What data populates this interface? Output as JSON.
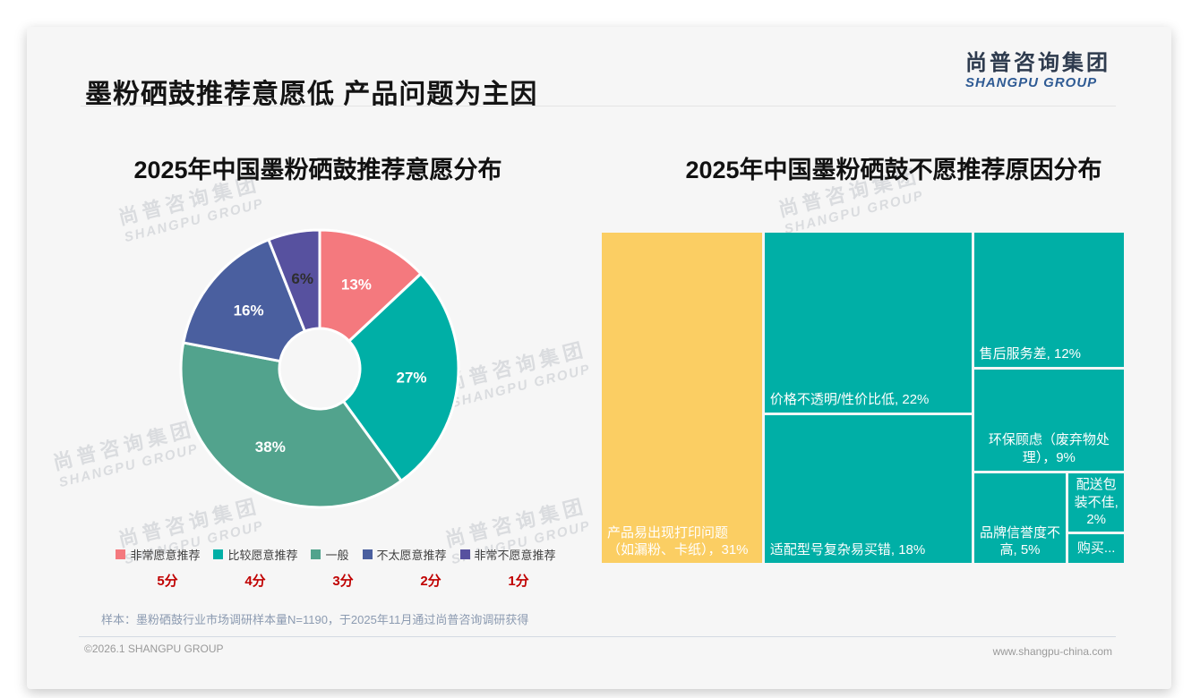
{
  "page": {
    "title": "墨粉硒鼓推荐意愿低 产品问题为主因",
    "logo": {
      "cn": "尚普咨询集团",
      "en": "SHANGPU GROUP"
    },
    "watermark": {
      "line1": "尚普咨询集团",
      "line2": "SHANGPU GROUP"
    },
    "footnote": "样本：墨粉硒鼓行业市场调研样本量N=1190，于2025年11月通过尚普咨询调研获得",
    "footer": {
      "left": "©2026.1 SHANGPU GROUP",
      "right": "www.shangpu-china.com"
    }
  },
  "chart_data": [
    {
      "type": "pie",
      "subtype": "donut",
      "title": "2025年中国墨粉硒鼓推荐意愿分布",
      "unit": "%",
      "legend_position": "bottom",
      "series": [
        {
          "label": "非常愿意推荐",
          "score": "5分",
          "value": 13,
          "pct_label": "13%",
          "color": "#F4797E",
          "label_color": "#FFFFFF"
        },
        {
          "label": "比较愿意推荐",
          "score": "4分",
          "value": 27,
          "pct_label": "27%",
          "color": "#00AFA6",
          "label_color": "#FFFFFF"
        },
        {
          "label": "一般",
          "score": "3分",
          "value": 38,
          "pct_label": "38%",
          "color": "#52A38D",
          "label_color": "#FFFFFF"
        },
        {
          "label": "不太愿意推荐",
          "score": "2分",
          "value": 16,
          "pct_label": "16%",
          "color": "#4A5F9F",
          "label_color": "#FFFFFF"
        },
        {
          "label": "非常不愿意推荐",
          "score": "1分",
          "value": 6,
          "pct_label": "6%",
          "color": "#57519F",
          "label_color": "#2E2E2E"
        }
      ]
    },
    {
      "type": "treemap",
      "title": "2025年中国墨粉硒鼓不愿推荐原因分布",
      "unit": "%",
      "items": [
        {
          "name": "产品易出现打印问题（如漏粉、卡纸）",
          "value": 31,
          "label": "产品易出现打印问题\n（如漏粉、卡纸），31%",
          "color": "#FBCE63",
          "align": "bottom-left"
        },
        {
          "name": "价格不透明/性价比低",
          "value": 22,
          "label": "价格不透明/性价比低, 22%",
          "color": "#00AFA6",
          "align": "bottom-left"
        },
        {
          "name": "适配型号复杂易买错",
          "value": 18,
          "label": "适配型号复杂易买错, 18%",
          "color": "#00AFA6",
          "align": "bottom-left"
        },
        {
          "name": "售后服务差",
          "value": 12,
          "label": "售后服务差, 12%",
          "color": "#00AFA6",
          "align": "bottom-left"
        },
        {
          "name": "环保顾虑（废弃物处理）",
          "value": 9,
          "label": "环保顾虑（废弃物处\n理），9%",
          "color": "#00AFA6",
          "align": "bottom-center"
        },
        {
          "name": "品牌信誉度不高",
          "value": 5,
          "label": "品牌信誉度不\n高, 5%",
          "color": "#00AFA6",
          "align": "bottom-center"
        },
        {
          "name": "配送包装不佳",
          "value": 2,
          "label": "配送包\n装不佳,\n2%",
          "color": "#00AFA6",
          "align": "center"
        },
        {
          "name": "购买（截断）",
          "value": 1,
          "label": "购买...",
          "color": "#00AFA6",
          "align": "center"
        }
      ]
    }
  ]
}
